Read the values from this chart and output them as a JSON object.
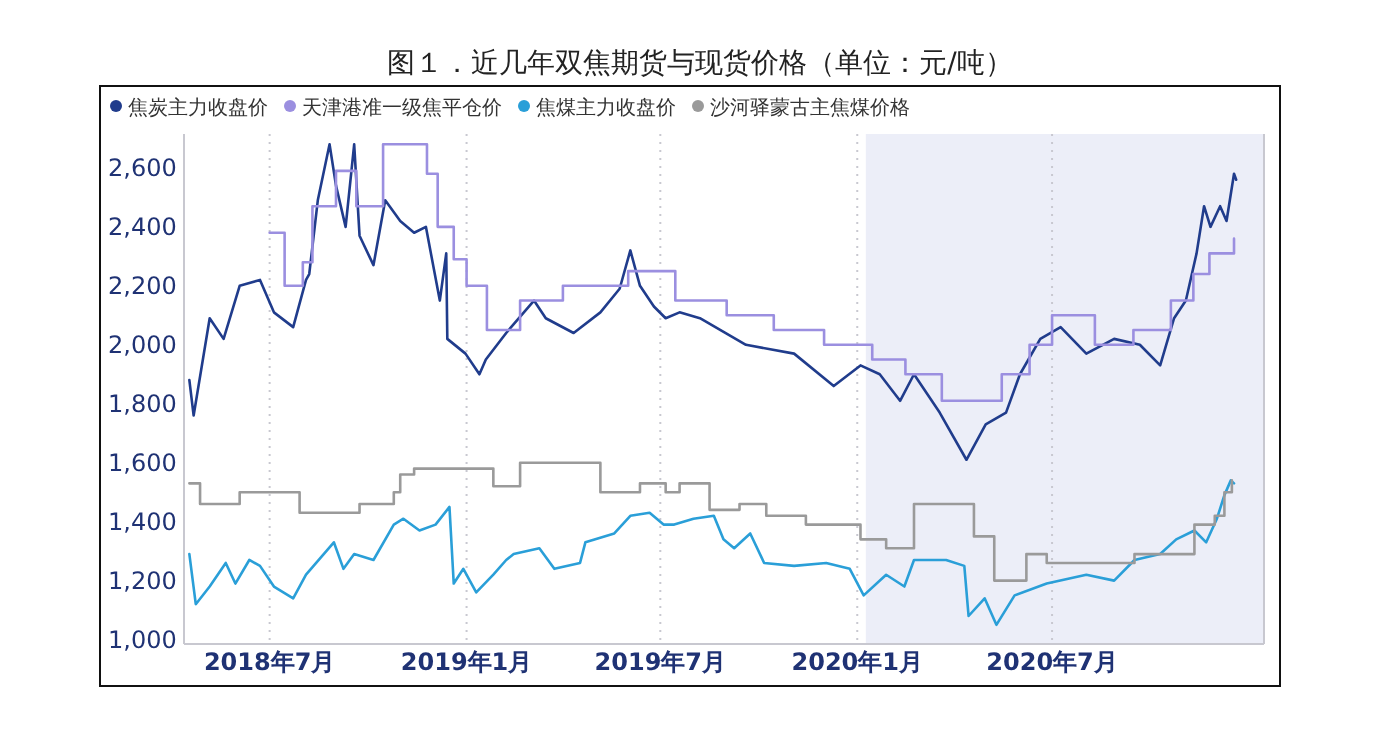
{
  "chart_data": {
    "type": "line",
    "title": "图１．近几年双焦期货与现货价格（单位：元/吨）",
    "xlim": [
      "2018-04-12",
      "2021-01-15"
    ],
    "ylim": [
      985,
      2715
    ],
    "xticks": [
      {
        "value": "2018-07",
        "label": "2018年7月"
      },
      {
        "value": "2019-01",
        "label": "2019年1月"
      },
      {
        "value": "2019-07",
        "label": "2019年7月"
      },
      {
        "value": "2020-01",
        "label": "2020年1月"
      },
      {
        "value": "2020-07",
        "label": "2020年7月"
      }
    ],
    "yticks": [
      {
        "value": 1000,
        "label": "1,000"
      },
      {
        "value": 1200,
        "label": "1,200"
      },
      {
        "value": 1400,
        "label": "1,400"
      },
      {
        "value": 1600,
        "label": "1,600"
      },
      {
        "value": 1800,
        "label": "1,800"
      },
      {
        "value": 2000,
        "label": "2,000"
      },
      {
        "value": 2200,
        "label": "2,200"
      },
      {
        "value": 2400,
        "label": "2,400"
      },
      {
        "value": 2600,
        "label": "2,600"
      }
    ],
    "grid": "x",
    "legend": "top left",
    "bands": [
      {
        "axis": "x",
        "from": "2020-01-09",
        "to": "2021-01-15",
        "color": "#eceef8"
      }
    ],
    "series": [
      {
        "name": "焦炭主力收盘价",
        "color": "#203c8c",
        "x": [
          "2018-04-17",
          "2018-04-21",
          "2018-05-06",
          "2018-05-19",
          "2018-06-03",
          "2018-06-22",
          "2018-07-05",
          "2018-07-23",
          "2018-08-04",
          "2018-08-07",
          "2018-08-15",
          "2018-08-26",
          "2018-09-01",
          "2018-09-10",
          "2018-09-18",
          "2018-09-23",
          "2018-10-06",
          "2018-10-17",
          "2018-10-31",
          "2018-11-13",
          "2018-11-24",
          "2018-12-07",
          "2018-12-13",
          "2018-12-14",
          "2018-12-31",
          "2019-01-13",
          "2019-01-19",
          "2019-02-07",
          "2019-03-05",
          "2019-03-16",
          "2019-04-11",
          "2019-05-06",
          "2019-05-24",
          "2019-06-03",
          "2019-06-12",
          "2019-06-25",
          "2019-07-06",
          "2019-07-19",
          "2019-08-07",
          "2019-09-19",
          "2019-11-03",
          "2019-12-10",
          "2020-01-04",
          "2020-01-22",
          "2020-02-10",
          "2020-02-23",
          "2020-03-18",
          "2020-04-12",
          "2020-04-30",
          "2020-05-19",
          "2020-06-01",
          "2020-06-20",
          "2020-07-09",
          "2020-08-02",
          "2020-08-28",
          "2020-09-21",
          "2020-10-10",
          "2020-10-23",
          "2020-11-03",
          "2020-11-13",
          "2020-11-20",
          "2020-11-26",
          "2020-12-05",
          "2020-12-11",
          "2020-12-18",
          "2020-12-20"
        ],
        "values": [
          1880,
          1760,
          2090,
          2020,
          2200,
          2220,
          2110,
          2060,
          2220,
          2240,
          2490,
          2680,
          2540,
          2400,
          2680,
          2370,
          2270,
          2490,
          2420,
          2380,
          2400,
          2150,
          2310,
          2020,
          1970,
          1900,
          1950,
          2040,
          2150,
          2090,
          2040,
          2110,
          2190,
          2320,
          2200,
          2130,
          2090,
          2110,
          2090,
          2000,
          1970,
          1860,
          1930,
          1900,
          1810,
          1900,
          1770,
          1610,
          1730,
          1770,
          1900,
          2020,
          2060,
          1970,
          2020,
          2000,
          1930,
          2090,
          2150,
          2310,
          2470,
          2400,
          2470,
          2420,
          2580,
          2560
        ]
      },
      {
        "name": "天津港准一级焦平仓价",
        "type": "step",
        "color": "#9b8fe0",
        "x": [
          "2018-07-01",
          "2018-07-15",
          "2018-08-01",
          "2018-08-10",
          "2018-09-01",
          "2018-09-20",
          "2018-10-15",
          "2018-11-25",
          "2018-12-05",
          "2018-12-20",
          "2019-01-01",
          "2019-01-20",
          "2019-02-20",
          "2019-04-01",
          "2019-06-01",
          "2019-07-15",
          "2019-09-01",
          "2019-10-15",
          "2019-12-01",
          "2020-01-15",
          "2020-02-15",
          "2020-03-20",
          "2020-05-15",
          "2020-06-10",
          "2020-07-01",
          "2020-08-10",
          "2020-09-15",
          "2020-10-20",
          "2020-11-10",
          "2020-11-25",
          "2020-12-18"
        ],
        "values": [
          2380,
          2200,
          2280,
          2470,
          2590,
          2470,
          2680,
          2580,
          2400,
          2290,
          2200,
          2050,
          2150,
          2200,
          2250,
          2150,
          2100,
          2050,
          2000,
          1950,
          1900,
          1810,
          1900,
          2000,
          2100,
          2000,
          2050,
          2150,
          2240,
          2310,
          2360
        ]
      },
      {
        "name": "焦煤主力收盘价",
        "color": "#2a9fd8",
        "x": [
          "2018-04-17",
          "2018-04-23",
          "2018-05-06",
          "2018-05-21",
          "2018-05-30",
          "2018-06-12",
          "2018-06-22",
          "2018-07-05",
          "2018-07-23",
          "2018-08-04",
          "2018-08-30",
          "2018-09-08",
          "2018-09-18",
          "2018-10-06",
          "2018-10-25",
          "2018-11-03",
          "2018-11-18",
          "2018-12-03",
          "2018-12-16",
          "2018-12-20",
          "2018-12-29",
          "2019-01-10",
          "2019-01-26",
          "2019-02-07",
          "2019-02-14",
          "2019-03-10",
          "2019-03-24",
          "2019-04-17",
          "2019-04-22",
          "2019-05-19",
          "2019-06-03",
          "2019-06-21",
          "2019-07-04",
          "2019-07-14",
          "2019-08-01",
          "2019-08-20",
          "2019-08-29",
          "2019-09-08",
          "2019-09-23",
          "2019-10-06",
          "2019-11-03",
          "2019-12-03",
          "2019-12-25",
          "2020-01-07",
          "2020-01-28",
          "2020-02-14",
          "2020-02-23",
          "2020-03-24",
          "2020-04-10",
          "2020-04-14",
          "2020-04-29",
          "2020-05-10",
          "2020-05-27",
          "2020-06-26",
          "2020-08-02",
          "2020-08-28",
          "2020-09-16",
          "2020-10-10",
          "2020-10-25",
          "2020-11-11",
          "2020-11-22",
          "2020-12-02",
          "2020-12-09",
          "2020-12-15",
          "2020-12-18"
        ],
        "values": [
          1290,
          1120,
          1180,
          1260,
          1190,
          1270,
          1250,
          1180,
          1140,
          1220,
          1330,
          1240,
          1290,
          1270,
          1390,
          1410,
          1370,
          1390,
          1450,
          1190,
          1240,
          1160,
          1220,
          1270,
          1290,
          1310,
          1240,
          1260,
          1330,
          1360,
          1420,
          1430,
          1390,
          1390,
          1410,
          1420,
          1340,
          1310,
          1360,
          1260,
          1250,
          1260,
          1240,
          1150,
          1220,
          1180,
          1270,
          1270,
          1250,
          1080,
          1140,
          1050,
          1150,
          1190,
          1220,
          1200,
          1270,
          1290,
          1340,
          1370,
          1330,
          1410,
          1490,
          1540,
          1530
        ]
      },
      {
        "name": "沙河驿蒙古主焦煤价格",
        "type": "step",
        "color": "#9a9a9a",
        "x": [
          "2018-04-17",
          "2018-04-27",
          "2018-06-03",
          "2018-07-29",
          "2018-09-23",
          "2018-10-25",
          "2018-10-31",
          "2018-11-13",
          "2019-01-26",
          "2019-02-20",
          "2019-05-06",
          "2019-06-12",
          "2019-07-06",
          "2019-07-19",
          "2019-08-16",
          "2019-09-13",
          "2019-10-08",
          "2019-11-14",
          "2020-01-04",
          "2020-01-28",
          "2020-02-23",
          "2020-04-19",
          "2020-05-08",
          "2020-06-07",
          "2020-06-26",
          "2020-09-16",
          "2020-11-11",
          "2020-11-30",
          "2020-12-09",
          "2020-12-16"
        ],
        "values": [
          1530,
          1460,
          1500,
          1430,
          1460,
          1500,
          1560,
          1580,
          1520,
          1600,
          1500,
          1530,
          1500,
          1530,
          1440,
          1460,
          1420,
          1390,
          1340,
          1310,
          1460,
          1350,
          1200,
          1290,
          1260,
          1290,
          1390,
          1420,
          1500,
          1540
        ]
      }
    ]
  }
}
